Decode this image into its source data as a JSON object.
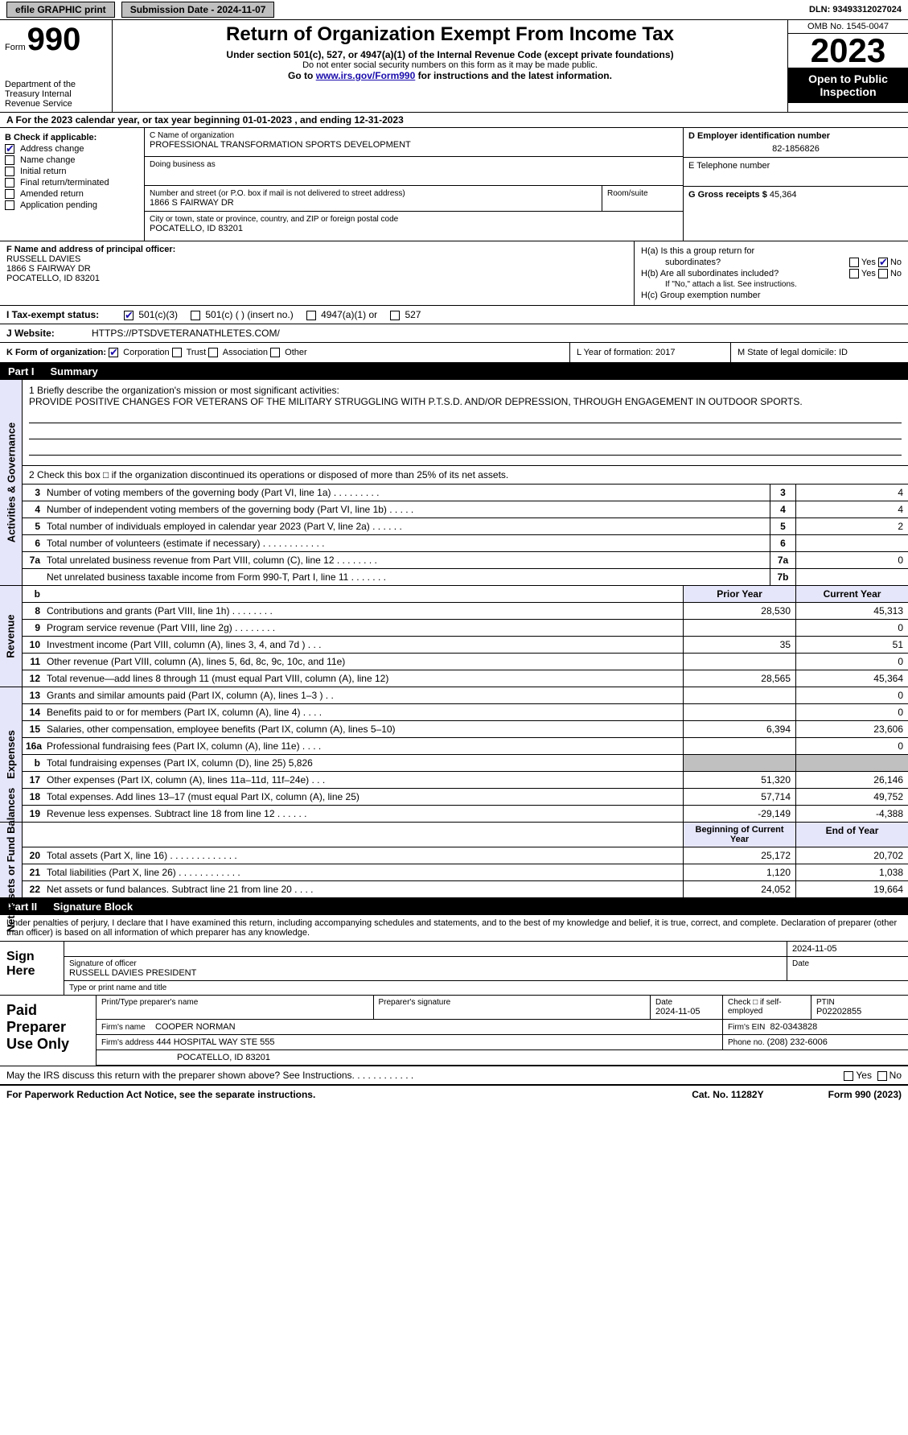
{
  "topbar": {
    "efile_label": "efile GRAPHIC print",
    "submission_label": "Submission Date - 2024-11-07",
    "dln": "DLN: 93493312027024"
  },
  "header": {
    "form_word": "Form",
    "form_num": "990",
    "title": "Return of Organization Exempt From Income Tax",
    "subtitle": "Under section 501(c), 527, or 4947(a)(1) of the Internal Revenue Code (except private foundations)",
    "note": "Do not enter social security numbers on this form as it may be made public.",
    "goto_pre": "Go to ",
    "goto_link": "www.irs.gov/Form990",
    "goto_post": " for instructions and the latest information.",
    "dept": "Department of the Treasury\nInternal Revenue Service",
    "omb": "OMB No. 1545-0047",
    "year": "2023",
    "open": "Open to Public Inspection"
  },
  "row_a": "A  For the 2023 calendar year, or tax year beginning 01-01-2023    , and ending 12-31-2023",
  "box_b": {
    "label": "B Check if applicable:",
    "items": [
      "Address change",
      "Name change",
      "Initial return",
      "Final return/terminated",
      "Amended return",
      "Application pending"
    ],
    "checked": [
      true,
      false,
      false,
      false,
      false,
      false
    ]
  },
  "box_c": {
    "name_label": "C Name of organization",
    "name": "PROFESSIONAL TRANSFORMATION SPORTS DEVELOPMENT",
    "dba_label": "Doing business as",
    "street_label": "Number and street (or P.O. box if mail is not delivered to street address)",
    "street": "1866 S FAIRWAY DR",
    "room_label": "Room/suite",
    "city_label": "City or town, state or province, country, and ZIP or foreign postal code",
    "city": "POCATELLO, ID  83201"
  },
  "box_d": {
    "label": "D Employer identification number",
    "value": "82-1856826"
  },
  "box_e": {
    "label": "E Telephone number"
  },
  "box_g": {
    "label": "G Gross receipts $",
    "value": "45,364"
  },
  "box_f": {
    "label": "F  Name and address of principal officer:",
    "name": "RUSSELL DAVIES",
    "street": "1866 S FAIRWAY DR",
    "city": "POCATELLO, ID  83201"
  },
  "box_h": {
    "a": "H(a)  Is this a group return for",
    "a2": "subordinates?",
    "b": "H(b)  Are all subordinates included?",
    "b2": "If \"No,\" attach a list. See instructions.",
    "c": "H(c)  Group exemption number",
    "yes": "Yes",
    "no": "No"
  },
  "tax_status": {
    "label": "I  Tax-exempt status:",
    "opts": [
      "501(c)(3)",
      "501(c) (  ) (insert no.)",
      "4947(a)(1) or",
      "527"
    ],
    "checked_idx": 0
  },
  "website": {
    "label": "J  Website:",
    "value": "HTTPS://PTSDVETERANATHLETES.COM/"
  },
  "k_row": {
    "k_label": "K Form of organization:",
    "opts": [
      "Corporation",
      "Trust",
      "Association",
      "Other"
    ],
    "l": "L Year of formation: 2017",
    "m": "M State of legal domicile: ID"
  },
  "part1": {
    "num": "Part I",
    "title": "Summary"
  },
  "mission": {
    "label": "1  Briefly describe the organization's mission or most significant activities:",
    "text": "PROVIDE POSITIVE CHANGES FOR VETERANS OF THE MILITARY STRUGGLING WITH P.T.S.D. AND/OR DEPRESSION, THROUGH ENGAGEMENT IN OUTDOOR SPORTS."
  },
  "check2": "2   Check this box □ if the organization discontinued its operations or disposed of more than 25% of its net assets.",
  "gov_lines": [
    {
      "n": "3",
      "d": "Number of voting members of the governing body (Part VI, line 1a)  .    .    .    .    .    .    .    .    .",
      "b": "3",
      "v": "4"
    },
    {
      "n": "4",
      "d": "Number of independent voting members of the governing body (Part VI, line 1b)   .    .    .    .    .",
      "b": "4",
      "v": "4"
    },
    {
      "n": "5",
      "d": "Total number of individuals employed in calendar year 2023 (Part V, line 2a)  .    .    .    .    .    .",
      "b": "5",
      "v": "2"
    },
    {
      "n": "6",
      "d": "Total number of volunteers (estimate if necessary)    .    .    .    .    .    .    .    .    .    .    .    .",
      "b": "6",
      "v": ""
    },
    {
      "n": "7a",
      "d": "Total unrelated business revenue from Part VIII, column (C), line 12   .    .    .    .    .    .    .    .",
      "b": "7a",
      "v": "0"
    },
    {
      "n": "",
      "d": "Net unrelated business taxable income from Form 990-T, Part I, line 11   .    .    .    .    .    .    .",
      "b": "7b",
      "v": ""
    }
  ],
  "rev_header": {
    "b": "b",
    "prior": "Prior Year",
    "current": "Current Year"
  },
  "rev_lines": [
    {
      "n": "8",
      "d": "Contributions and grants (Part VIII, line 1h)   .    .    .    .    .    .    .    .",
      "p": "28,530",
      "c": "45,313"
    },
    {
      "n": "9",
      "d": "Program service revenue (Part VIII, line 2g)    .    .    .    .    .    .    .    .",
      "p": "",
      "c": "0"
    },
    {
      "n": "10",
      "d": "Investment income (Part VIII, column (A), lines 3, 4, and 7d )   .    .    .",
      "p": "35",
      "c": "51"
    },
    {
      "n": "11",
      "d": "Other revenue (Part VIII, column (A), lines 5, 6d, 8c, 9c, 10c, and 11e)",
      "p": "",
      "c": "0"
    },
    {
      "n": "12",
      "d": "Total revenue—add lines 8 through 11 (must equal Part VIII, column (A), line 12)",
      "p": "28,565",
      "c": "45,364"
    }
  ],
  "exp_lines": [
    {
      "n": "13",
      "d": "Grants and similar amounts paid (Part IX, column (A), lines 1–3 )  .    .",
      "p": "",
      "c": "0"
    },
    {
      "n": "14",
      "d": "Benefits paid to or for members (Part IX, column (A), line 4)  .    .    .    .",
      "p": "",
      "c": "0"
    },
    {
      "n": "15",
      "d": "Salaries, other compensation, employee benefits (Part IX, column (A), lines 5–10)",
      "p": "6,394",
      "c": "23,606"
    },
    {
      "n": "16a",
      "d": "Professional fundraising fees (Part IX, column (A), line 11e)  .    .    .    .",
      "p": "",
      "c": "0"
    },
    {
      "n": "b",
      "d": "Total fundraising expenses (Part IX, column (D), line 25) 5,826",
      "p": "shade",
      "c": "shade"
    },
    {
      "n": "17",
      "d": "Other expenses (Part IX, column (A), lines 11a–11d, 11f–24e)  .    .    .",
      "p": "51,320",
      "c": "26,146"
    },
    {
      "n": "18",
      "d": "Total expenses. Add lines 13–17 (must equal Part IX, column (A), line 25)",
      "p": "57,714",
      "c": "49,752"
    },
    {
      "n": "19",
      "d": "Revenue less expenses. Subtract line 18 from line 12  .    .    .    .    .    .",
      "p": "-29,149",
      "c": "-4,388"
    }
  ],
  "net_header": {
    "begin": "Beginning of Current Year",
    "end": "End of Year"
  },
  "net_lines": [
    {
      "n": "20",
      "d": "Total assets (Part X, line 16)  .    .    .    .    .    .    .    .    .    .    .    .    .",
      "p": "25,172",
      "c": "20,702"
    },
    {
      "n": "21",
      "d": "Total liabilities (Part X, line 26)   .    .    .    .    .    .    .    .    .    .    .    .",
      "p": "1,120",
      "c": "1,038"
    },
    {
      "n": "22",
      "d": "Net assets or fund balances. Subtract line 21 from line 20  .    .    .    .",
      "p": "24,052",
      "c": "19,664"
    }
  ],
  "vtabs": {
    "gov": "Activities & Governance",
    "rev": "Revenue",
    "exp": "Expenses",
    "net": "Net Assets or\nFund Balances"
  },
  "part2": {
    "num": "Part II",
    "title": "Signature Block"
  },
  "sig_note": "Under penalties of perjury, I declare that I have examined this return, including accompanying schedules and statements, and to the best of my knowledge and belief, it is true, correct, and complete. Declaration of preparer (other than officer) is based on all information of which preparer has any knowledge.",
  "sign": {
    "left1": "Sign",
    "left2": "Here",
    "date": "2024-11-05",
    "sig_label": "Signature of officer",
    "name": "RUSSELL DAVIES  PRESIDENT",
    "type_label": "Type or print name and title",
    "date_label": "Date"
  },
  "paid": {
    "left": "Paid Preparer Use Only",
    "print_label": "Print/Type preparer's name",
    "prepsig_label": "Preparer's signature",
    "date_label": "Date",
    "date": "2024-11-05",
    "check_label": "Check □ if self-employed",
    "ptin_label": "PTIN",
    "ptin": "P02202855",
    "firm_label": "Firm's name",
    "firm": "COOPER NORMAN",
    "ein_label": "Firm's EIN",
    "ein": "82-0343828",
    "addr_label": "Firm's address",
    "addr1": "444 HOSPITAL WAY STE 555",
    "addr2": "POCATELLO, ID  83201",
    "phone_label": "Phone no.",
    "phone": "(208) 232-6006"
  },
  "discuss": {
    "text": "May the IRS discuss this return with the preparer shown above? See Instructions.  .    .    .    .    .    .    .    .    .    .    .",
    "yes": "Yes",
    "no": "No"
  },
  "footer": {
    "left": "For Paperwork Reduction Act Notice, see the separate instructions.",
    "cat": "Cat. No. 11282Y",
    "right": "Form 990 (2023)"
  }
}
